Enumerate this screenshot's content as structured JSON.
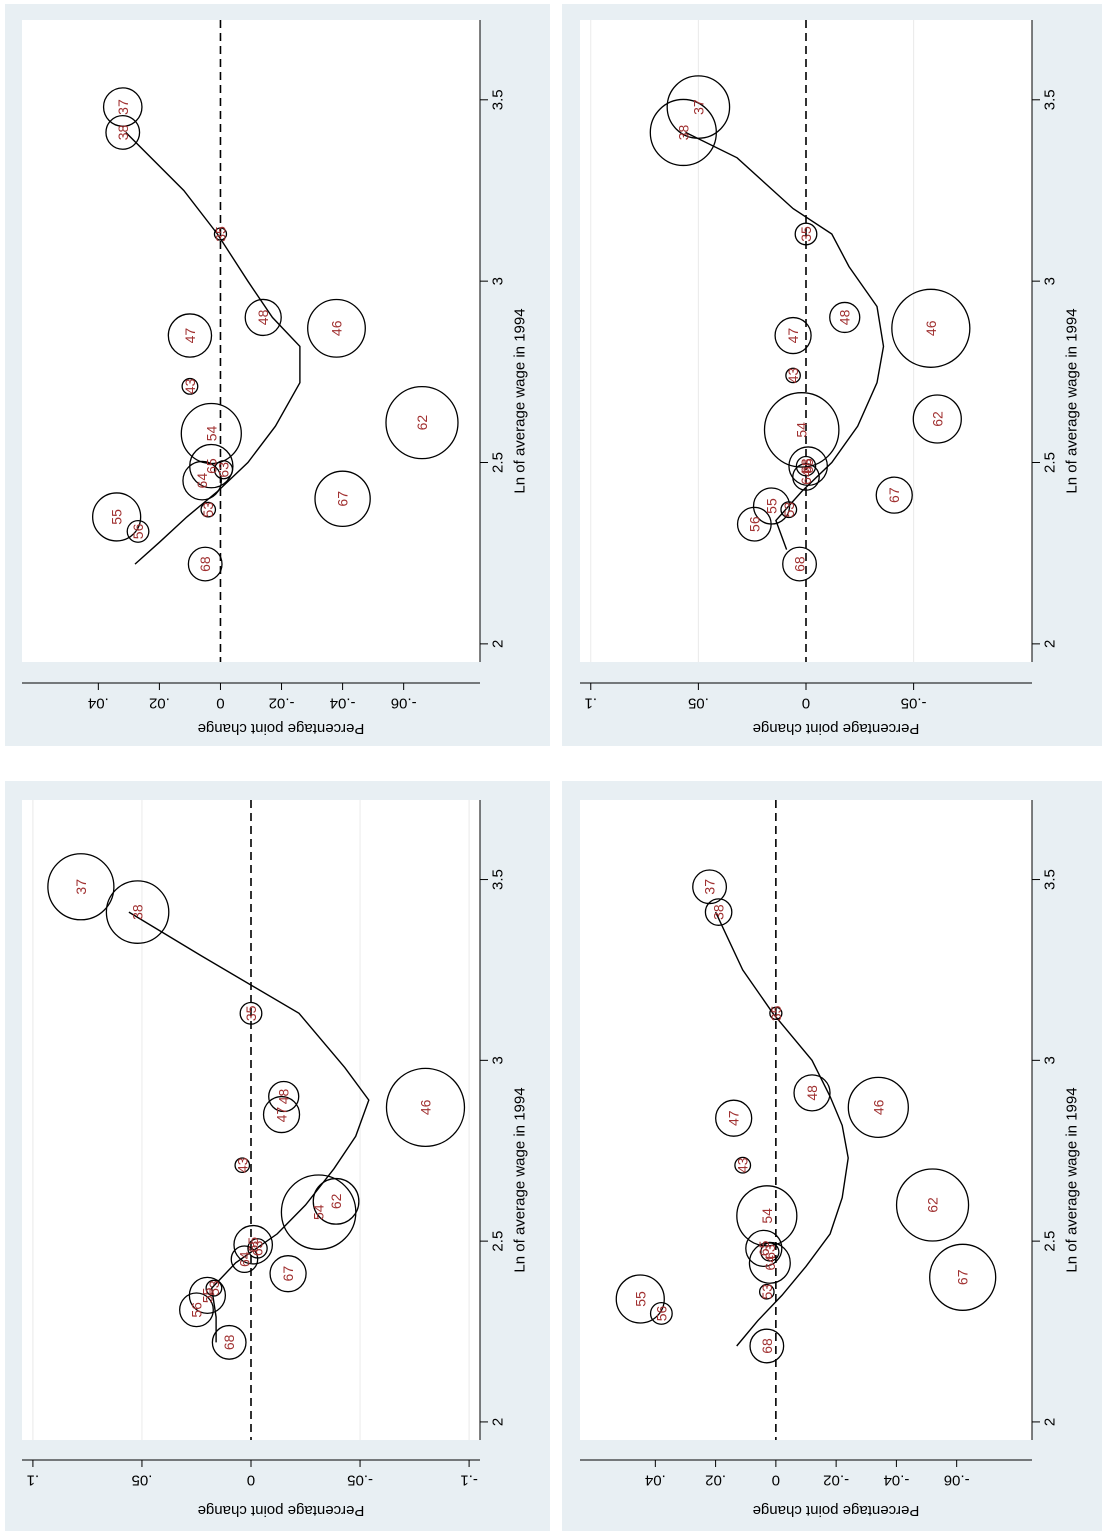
{
  "chart_data": [
    {
      "type": "scatter",
      "panel": "top-left",
      "xlabel": "Ln of average wage in 1994",
      "ylabel": "Percentage point change",
      "xlim": [
        1.95,
        3.72
      ],
      "ylim": [
        -0.105,
        0.105
      ],
      "x_ticks": [
        2,
        2.5,
        3,
        3.5
      ],
      "x_tick_labels": [
        "2",
        "2.5",
        "3",
        "3.5"
      ],
      "y_ticks": [
        0.1,
        0.05,
        0,
        -0.05,
        -0.1
      ],
      "y_tick_labels": [
        ".1",
        ".05",
        "0",
        "-.05",
        "-.1"
      ],
      "y_grid": [
        0.1,
        0.05,
        -0.05,
        -0.1
      ],
      "grid": true,
      "reference_line_y": 0,
      "points": [
        {
          "label": "37",
          "x": 3.48,
          "y": 0.078,
          "r": 0.55
        },
        {
          "label": "38",
          "x": 3.41,
          "y": 0.052,
          "r": 0.52
        },
        {
          "label": "35",
          "x": 3.13,
          "y": 0.0,
          "r": 0.18
        },
        {
          "label": "48",
          "x": 2.9,
          "y": -0.015,
          "r": 0.25
        },
        {
          "label": "47",
          "x": 2.85,
          "y": -0.014,
          "r": 0.3
        },
        {
          "label": "46",
          "x": 2.87,
          "y": -0.08,
          "r": 0.65
        },
        {
          "label": "43",
          "x": 2.71,
          "y": 0.004,
          "r": 0.12
        },
        {
          "label": "62",
          "x": 2.61,
          "y": -0.039,
          "r": 0.38
        },
        {
          "label": "54",
          "x": 2.58,
          "y": -0.031,
          "r": 0.62
        },
        {
          "label": "65",
          "x": 2.49,
          "y": -0.001,
          "r": 0.32
        },
        {
          "label": "63",
          "x": 2.48,
          "y": -0.003,
          "r": 0.16
        },
        {
          "label": "64",
          "x": 2.45,
          "y": 0.003,
          "r": 0.22
        },
        {
          "label": "67",
          "x": 2.41,
          "y": -0.017,
          "r": 0.3
        },
        {
          "label": "53",
          "x": 2.37,
          "y": 0.017,
          "r": 0.13
        },
        {
          "label": "55",
          "x": 2.35,
          "y": 0.02,
          "r": 0.3
        },
        {
          "label": "56",
          "x": 2.31,
          "y": 0.025,
          "r": 0.28
        },
        {
          "label": "68",
          "x": 2.22,
          "y": 0.01,
          "r": 0.28
        }
      ],
      "fit_line": [
        [
          2.22,
          0.016
        ],
        [
          2.29,
          0.016
        ],
        [
          2.37,
          0.018
        ],
        [
          2.44,
          0.007
        ],
        [
          2.52,
          -0.012
        ],
        [
          2.6,
          -0.025
        ],
        [
          2.7,
          -0.038
        ],
        [
          2.79,
          -0.048
        ],
        [
          2.89,
          -0.054
        ],
        [
          2.98,
          -0.043
        ],
        [
          3.13,
          -0.022
        ],
        [
          3.29,
          0.023
        ],
        [
          3.41,
          0.056
        ]
      ]
    },
    {
      "type": "scatter",
      "panel": "top-right",
      "xlabel": "Ln of average wage in 1994",
      "ylabel": "Percentage point change",
      "xlim": [
        1.95,
        3.72
      ],
      "ylim": [
        -0.105,
        0.105
      ],
      "x_ticks": [
        2,
        2.5,
        3,
        3.5
      ],
      "x_tick_labels": [
        "2",
        "2.5",
        "3",
        "3.5"
      ],
      "y_ticks": [
        0.1,
        0.05,
        0,
        -0.05
      ],
      "y_tick_labels": [
        ".1",
        ".05",
        "0",
        "-.05"
      ],
      "y_grid": [
        0.1,
        0.05,
        -0.05
      ],
      "grid": true,
      "reference_line_y": 0,
      "points": [
        {
          "label": "37",
          "x": 3.48,
          "y": 0.05,
          "r": 0.52
        },
        {
          "label": "38",
          "x": 3.41,
          "y": 0.057,
          "r": 0.55
        },
        {
          "label": "35",
          "x": 3.13,
          "y": 0.0,
          "r": 0.18
        },
        {
          "label": "48",
          "x": 2.9,
          "y": -0.018,
          "r": 0.25
        },
        {
          "label": "47",
          "x": 2.85,
          "y": 0.006,
          "r": 0.3
        },
        {
          "label": "46",
          "x": 2.87,
          "y": -0.058,
          "r": 0.65
        },
        {
          "label": "43",
          "x": 2.74,
          "y": 0.006,
          "r": 0.12
        },
        {
          "label": "62",
          "x": 2.62,
          "y": -0.061,
          "r": 0.4
        },
        {
          "label": "54",
          "x": 2.59,
          "y": 0.002,
          "r": 0.62
        },
        {
          "label": "67",
          "x": 2.41,
          "y": -0.041,
          "r": 0.3
        },
        {
          "label": "65",
          "x": 2.49,
          "y": -0.001,
          "r": 0.32
        },
        {
          "label": "63",
          "x": 2.49,
          "y": 0.0,
          "r": 0.16
        },
        {
          "label": "64",
          "x": 2.46,
          "y": 0.0,
          "r": 0.22
        },
        {
          "label": "53",
          "x": 2.37,
          "y": 0.008,
          "r": 0.13
        },
        {
          "label": "55",
          "x": 2.38,
          "y": 0.016,
          "r": 0.3
        },
        {
          "label": "56",
          "x": 2.33,
          "y": 0.024,
          "r": 0.28
        },
        {
          "label": "68",
          "x": 2.22,
          "y": 0.003,
          "r": 0.28
        }
      ],
      "fit_line": [
        [
          2.26,
          0.009
        ],
        [
          2.34,
          0.014
        ],
        [
          2.42,
          0.002
        ],
        [
          2.5,
          -0.012
        ],
        [
          2.6,
          -0.024
        ],
        [
          2.72,
          -0.033
        ],
        [
          2.82,
          -0.036
        ],
        [
          2.93,
          -0.033
        ],
        [
          3.04,
          -0.02
        ],
        [
          3.13,
          -0.012
        ],
        [
          3.2,
          0.006
        ],
        [
          3.34,
          0.032
        ],
        [
          3.41,
          0.056
        ]
      ]
    },
    {
      "type": "scatter",
      "panel": "bottom-left",
      "xlabel": "Ln of average wage in 1994",
      "ylabel": "Percentage point change",
      "xlim": [
        1.95,
        3.72
      ],
      "ylim": [
        -0.085,
        0.065
      ],
      "x_ticks": [
        2,
        2.5,
        3,
        3.5
      ],
      "x_tick_labels": [
        "2",
        "2.5",
        "3",
        "3.5"
      ],
      "y_ticks": [
        0.04,
        0.02,
        0,
        -0.02,
        -0.04,
        -0.06
      ],
      "y_tick_labels": [
        ".04",
        ".02",
        "0",
        "-.02",
        "-.04",
        "-.06"
      ],
      "y_grid": [],
      "grid": false,
      "reference_line_y": 0,
      "points": [
        {
          "label": "37",
          "x": 3.48,
          "y": 0.032,
          "r": 0.32
        },
        {
          "label": "38",
          "x": 3.41,
          "y": 0.032,
          "r": 0.28
        },
        {
          "label": "35",
          "x": 3.13,
          "y": 0.0,
          "r": 0.1
        },
        {
          "label": "48",
          "x": 2.9,
          "y": -0.014,
          "r": 0.3
        },
        {
          "label": "47",
          "x": 2.85,
          "y": 0.01,
          "r": 0.36
        },
        {
          "label": "46",
          "x": 2.87,
          "y": -0.038,
          "r": 0.48
        },
        {
          "label": "43",
          "x": 2.71,
          "y": 0.01,
          "r": 0.13
        },
        {
          "label": "62",
          "x": 2.61,
          "y": -0.066,
          "r": 0.6
        },
        {
          "label": "54",
          "x": 2.58,
          "y": 0.003,
          "r": 0.5
        },
        {
          "label": "65",
          "x": 2.49,
          "y": 0.003,
          "r": 0.36
        },
        {
          "label": "63",
          "x": 2.48,
          "y": -0.001,
          "r": 0.15
        },
        {
          "label": "64",
          "x": 2.45,
          "y": 0.006,
          "r": 0.32
        },
        {
          "label": "67",
          "x": 2.4,
          "y": -0.04,
          "r": 0.46
        },
        {
          "label": "53",
          "x": 2.37,
          "y": 0.004,
          "r": 0.12
        },
        {
          "label": "55",
          "x": 2.35,
          "y": 0.034,
          "r": 0.4
        },
        {
          "label": "56",
          "x": 2.31,
          "y": 0.027,
          "r": 0.18
        },
        {
          "label": "68",
          "x": 2.22,
          "y": 0.005,
          "r": 0.28
        }
      ],
      "fit_line": [
        [
          2.22,
          0.028
        ],
        [
          2.28,
          0.02
        ],
        [
          2.35,
          0.011
        ],
        [
          2.42,
          0.001
        ],
        [
          2.5,
          -0.009
        ],
        [
          2.6,
          -0.018
        ],
        [
          2.72,
          -0.026
        ],
        [
          2.82,
          -0.026
        ],
        [
          2.9,
          -0.017
        ],
        [
          3.0,
          -0.009
        ],
        [
          3.13,
          0.001
        ],
        [
          3.25,
          0.012
        ],
        [
          3.41,
          0.031
        ]
      ]
    },
    {
      "type": "scatter",
      "panel": "bottom-right",
      "xlabel": "Ln of average wage in 1994",
      "ylabel": "Percentage point change",
      "xlim": [
        1.95,
        3.72
      ],
      "ylim": [
        -0.085,
        0.065
      ],
      "x_ticks": [
        2,
        2.5,
        3,
        3.5
      ],
      "x_tick_labels": [
        "2",
        "2.5",
        "3",
        "3.5"
      ],
      "y_ticks": [
        0.04,
        0.02,
        0,
        -0.02,
        -0.04,
        -0.06
      ],
      "y_tick_labels": [
        ".04",
        ".02",
        "0",
        "-.02",
        "-.04",
        "-.06"
      ],
      "y_grid": [],
      "grid": false,
      "reference_line_y": 0,
      "points": [
        {
          "label": "37",
          "x": 3.48,
          "y": 0.022,
          "r": 0.28
        },
        {
          "label": "38",
          "x": 3.41,
          "y": 0.019,
          "r": 0.22
        },
        {
          "label": "35",
          "x": 3.13,
          "y": 0.0,
          "r": 0.1
        },
        {
          "label": "48",
          "x": 2.91,
          "y": -0.012,
          "r": 0.3
        },
        {
          "label": "47",
          "x": 2.84,
          "y": 0.014,
          "r": 0.3
        },
        {
          "label": "46",
          "x": 2.87,
          "y": -0.034,
          "r": 0.5
        },
        {
          "label": "43",
          "x": 2.71,
          "y": 0.011,
          "r": 0.13
        },
        {
          "label": "62",
          "x": 2.6,
          "y": -0.052,
          "r": 0.6
        },
        {
          "label": "54",
          "x": 2.57,
          "y": 0.003,
          "r": 0.5
        },
        {
          "label": "65",
          "x": 2.48,
          "y": 0.004,
          "r": 0.3
        },
        {
          "label": "63",
          "x": 2.47,
          "y": 0.002,
          "r": 0.15
        },
        {
          "label": "64",
          "x": 2.44,
          "y": 0.002,
          "r": 0.34
        },
        {
          "label": "67",
          "x": 2.4,
          "y": -0.062,
          "r": 0.55
        },
        {
          "label": "53",
          "x": 2.36,
          "y": 0.003,
          "r": 0.12
        },
        {
          "label": "55",
          "x": 2.34,
          "y": 0.045,
          "r": 0.4
        },
        {
          "label": "56",
          "x": 2.3,
          "y": 0.038,
          "r": 0.18
        },
        {
          "label": "68",
          "x": 2.21,
          "y": 0.003,
          "r": 0.28
        }
      ],
      "fit_line": [
        [
          2.21,
          0.013
        ],
        [
          2.28,
          0.006
        ],
        [
          2.35,
          -0.002
        ],
        [
          2.43,
          -0.01
        ],
        [
          2.52,
          -0.018
        ],
        [
          2.62,
          -0.022
        ],
        [
          2.73,
          -0.024
        ],
        [
          2.82,
          -0.022
        ],
        [
          2.9,
          -0.018
        ],
        [
          3.0,
          -0.012
        ],
        [
          3.13,
          0.001
        ],
        [
          3.25,
          0.011
        ],
        [
          3.41,
          0.02
        ]
      ]
    }
  ]
}
